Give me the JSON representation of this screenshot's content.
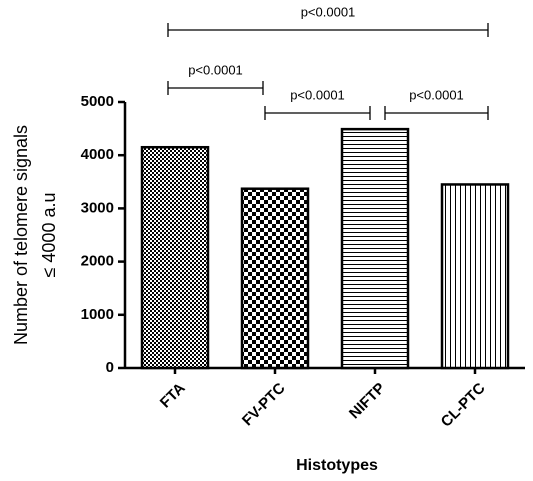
{
  "chart_data": {
    "type": "bar",
    "x_label": "Histotypes",
    "y_label": [
      "Number of telomere signals",
      "≤ 4000 a.u"
    ],
    "categories": [
      "FTA",
      "FV-PTC",
      "NIFTP",
      "CL-PTC"
    ],
    "values": [
      4150,
      3370,
      4490,
      3450
    ],
    "color": "#000000",
    "ylim": [
      0,
      5000
    ],
    "yticks": [
      0,
      1000,
      2000,
      3000,
      4000,
      5000
    ],
    "annotations": [
      "p<0.0001",
      "p<0.0001",
      "p<0.0001",
      "p<0.0001"
    ]
  }
}
